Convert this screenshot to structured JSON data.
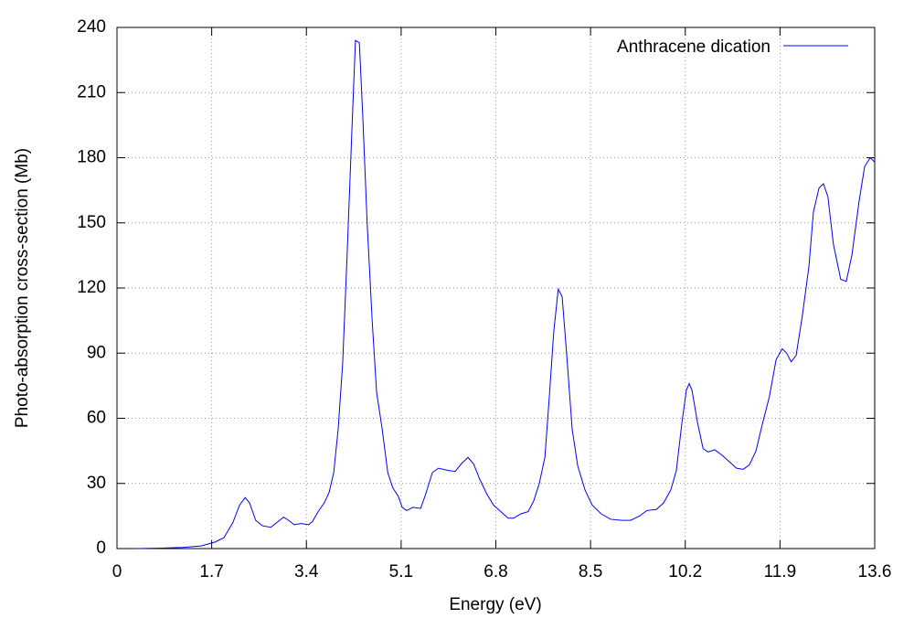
{
  "chart_data": {
    "type": "line",
    "xlabel": "Energy (eV)",
    "ylabel": "Photo-absorption cross-section (Mb)",
    "x": [
      0.36,
      0.8,
      1.18,
      1.51,
      1.76,
      1.92,
      2.08,
      2.2,
      2.3,
      2.38,
      2.49,
      2.61,
      2.76,
      2.87,
      2.99,
      3.08,
      3.18,
      3.31,
      3.44,
      3.51,
      3.61,
      3.72,
      3.81,
      3.89,
      3.97,
      4.05,
      4.13,
      4.22,
      4.28,
      4.35,
      4.41,
      4.49,
      4.58,
      4.66,
      4.76,
      4.86,
      4.95,
      5.05,
      5.12,
      5.2,
      5.31,
      5.45,
      5.54,
      5.66,
      5.77,
      5.94,
      6.07,
      6.18,
      6.3,
      6.4,
      6.51,
      6.64,
      6.76,
      6.89,
      7.02,
      7.12,
      7.25,
      7.38,
      7.48,
      7.58,
      7.68,
      7.76,
      7.84,
      7.92,
      7.99,
      8.07,
      8.17,
      8.27,
      8.4,
      8.53,
      8.69,
      8.86,
      9.06,
      9.22,
      9.38,
      9.51,
      9.68,
      9.81,
      9.94,
      10.04,
      10.14,
      10.22,
      10.27,
      10.32,
      10.42,
      10.52,
      10.61,
      10.73,
      10.86,
      10.99,
      11.12,
      11.24,
      11.35,
      11.47,
      11.58,
      11.71,
      11.83,
      11.94,
      12.02,
      12.1,
      12.19,
      12.3,
      12.42,
      12.5,
      12.6,
      12.68,
      12.76,
      12.86,
      12.99,
      13.09,
      13.19,
      13.32,
      13.42,
      13.52,
      13.6
    ],
    "series": [
      {
        "name": "Anthracene dication",
        "color": "#0000ff",
        "values": [
          0,
          0.2,
          0.5,
          1.2,
          3,
          5,
          12,
          20,
          23.5,
          21,
          13,
          10.5,
          9.8,
          12,
          14.5,
          13,
          11,
          11.5,
          11,
          12.5,
          17,
          21,
          26,
          35,
          55,
          85,
          135,
          195,
          234,
          233,
          200,
          150,
          105,
          72,
          55,
          35,
          28,
          24,
          19,
          17.5,
          19,
          18.5,
          25,
          35,
          37,
          36,
          35.5,
          39,
          42,
          39,
          32,
          25,
          20,
          17,
          14,
          14,
          16,
          17,
          22,
          30,
          42,
          70,
          100,
          119.5,
          116,
          90,
          55,
          38,
          27,
          20,
          16,
          13.5,
          13,
          13,
          15,
          17.5,
          18,
          21,
          27,
          36,
          58,
          73,
          76,
          73,
          58,
          46,
          44.5,
          45.5,
          43,
          40,
          37,
          36.5,
          38.5,
          45,
          57,
          70,
          87,
          92,
          90,
          86,
          89,
          107,
          130,
          155,
          166,
          168,
          162,
          140,
          124,
          123,
          135,
          160,
          176,
          180,
          178
        ]
      }
    ],
    "xlim": [
      0,
      13.6
    ],
    "ylim": [
      0,
      240
    ],
    "xticks": [
      0,
      1.7,
      3.4,
      5.1,
      6.8,
      8.5,
      10.2,
      11.9,
      13.6
    ],
    "yticks": [
      0,
      30,
      60,
      90,
      120,
      150,
      180,
      210,
      240
    ],
    "grid": true,
    "legend": "upper right"
  }
}
